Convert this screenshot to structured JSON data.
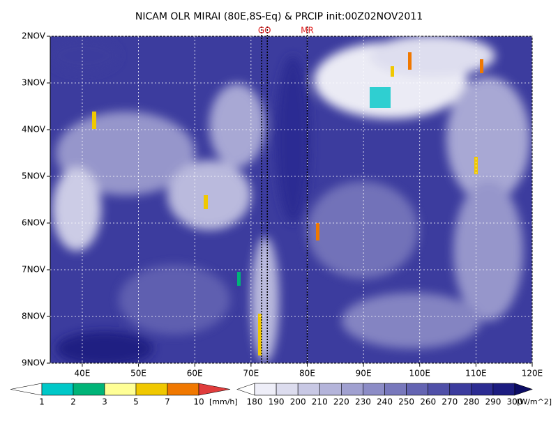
{
  "chart_data": {
    "type": "hovmoller",
    "title": "NICAM OLR MIRAI (80E,8S-Eq) & PRCIP init:00Z02NOV2011",
    "xlim": [
      34.3,
      120
    ],
    "xticks": [
      {
        "value": 40,
        "label": "40E"
      },
      {
        "value": 50,
        "label": "50E"
      },
      {
        "value": 60,
        "label": "60E"
      },
      {
        "value": 70,
        "label": "70E"
      },
      {
        "value": 80,
        "label": "80E"
      },
      {
        "value": 90,
        "label": "90E"
      },
      {
        "value": 100,
        "label": "100E"
      },
      {
        "value": 110,
        "label": "110E"
      },
      {
        "value": 120,
        "label": "120E"
      }
    ],
    "ylim": [
      2,
      9
    ],
    "yticks": [
      {
        "value": 2,
        "label": "2NOV"
      },
      {
        "value": 3,
        "label": "3NOV"
      },
      {
        "value": 4,
        "label": "4NOV"
      },
      {
        "value": 5,
        "label": "5NOV"
      },
      {
        "value": 6,
        "label": "6NOV"
      },
      {
        "value": 7,
        "label": "7NOV"
      },
      {
        "value": 8,
        "label": "8NOV"
      },
      {
        "value": 9,
        "label": "9NOV"
      }
    ],
    "grid": true,
    "markers": [
      {
        "label": "GO",
        "x": [
          71.9,
          72.9
        ]
      },
      {
        "label": "MR",
        "x": [
          80
        ]
      }
    ],
    "colorbars": [
      {
        "levels": [
          1,
          2,
          3,
          5,
          7,
          10
        ],
        "unit": "[mm/h]",
        "colors": [
          "#ffffff",
          "#00c8c8",
          "#00b478",
          "#ffff96",
          "#f0c800",
          "#f07800",
          "#e03c3c"
        ]
      },
      {
        "levels": [
          180,
          190,
          200,
          210,
          220,
          230,
          240,
          250,
          260,
          270,
          280,
          290,
          300
        ],
        "unit": "[W/m^2]",
        "colors": [
          "#ffffff",
          "#eeeef8",
          "#dcdcee",
          "#c8c8e4",
          "#b4b4da",
          "#a0a0d0",
          "#8c8cc6",
          "#7878bc",
          "#6464b2",
          "#5050a8",
          "#3c3c9e",
          "#2c2c92",
          "#1c1c80",
          "#0c0c64"
        ]
      }
    ]
  }
}
